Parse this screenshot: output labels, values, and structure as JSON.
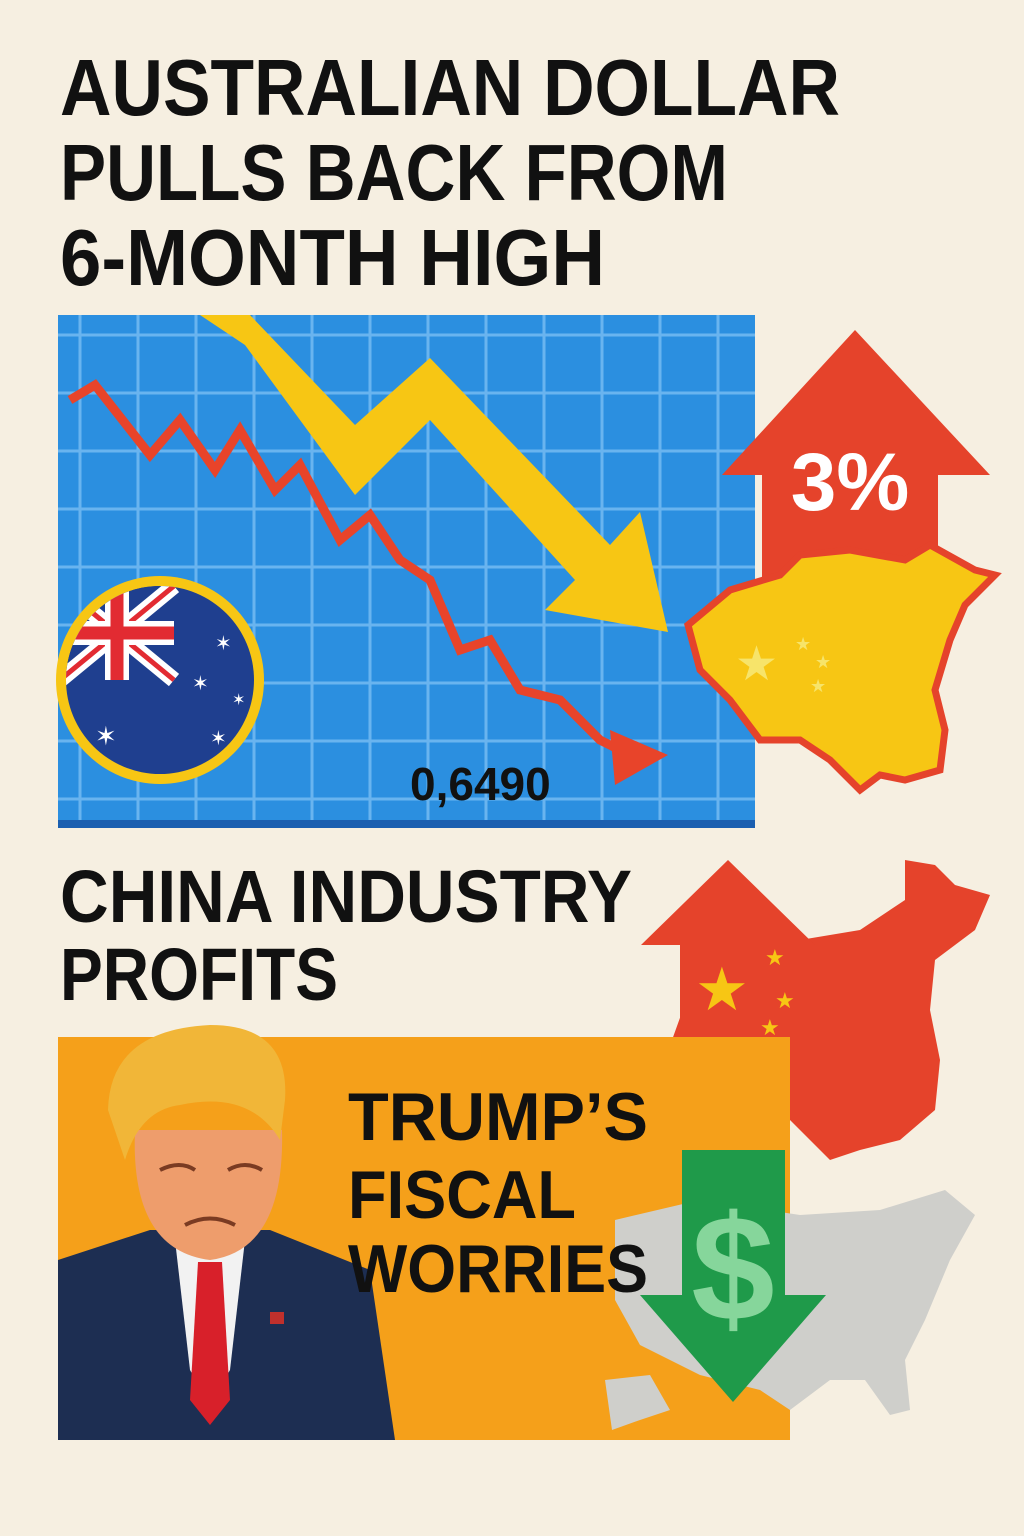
{
  "title_lines": [
    "AUSTRALIAN DOLLAR",
    "PULLS BACK FROM",
    "6-MONTH HIGH"
  ],
  "chart_panel": {
    "price_label": "0,6490"
  },
  "china_arrow": {
    "label": "3%"
  },
  "section_heading_lines": [
    "CHINA INDUSTRY",
    "PROFITS"
  ],
  "fiscal_panel": {
    "heading_lines": [
      "TRUMP’S",
      "FISCAL",
      "WORRIES"
    ],
    "dollar_symbol": "$"
  }
}
